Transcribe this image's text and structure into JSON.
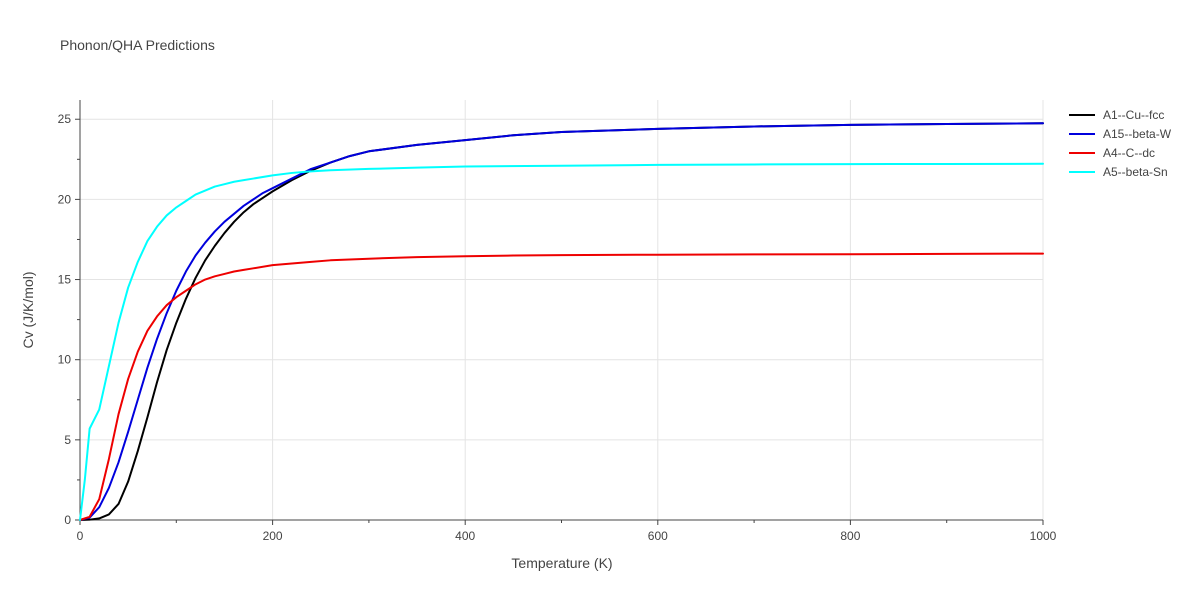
{
  "chart_data": {
    "type": "line",
    "title": "Phonon/QHA Predictions",
    "xlabel": "Temperature (K)",
    "ylabel": "Cv (J/K/mol)",
    "xlim": [
      0,
      1000
    ],
    "ylim": [
      0,
      26.2
    ],
    "xticks": [
      0,
      200,
      400,
      600,
      800,
      1000
    ],
    "yticks": [
      0,
      5,
      10,
      15,
      20,
      25
    ],
    "grid": true,
    "legend_position": "top-right",
    "series": [
      {
        "name": "A1--Cu--fcc",
        "color": "#000000",
        "x": [
          0,
          10,
          20,
          30,
          40,
          50,
          60,
          70,
          80,
          90,
          100,
          110,
          120,
          130,
          140,
          150,
          160,
          170,
          180,
          190,
          200,
          220,
          240,
          260,
          280,
          300,
          350,
          400,
          450,
          500,
          600,
          700,
          800,
          900,
          1000
        ],
        "y": [
          0,
          0.02,
          0.1,
          0.35,
          1.0,
          2.4,
          4.3,
          6.4,
          8.6,
          10.6,
          12.3,
          13.8,
          15.1,
          16.2,
          17.1,
          17.9,
          18.6,
          19.2,
          19.7,
          20.1,
          20.5,
          21.2,
          21.8,
          22.3,
          22.7,
          23.0,
          23.4,
          23.7,
          24.0,
          24.2,
          24.4,
          24.55,
          24.65,
          24.7,
          24.75
        ]
      },
      {
        "name": "A15--beta-W",
        "color": "#0000dd",
        "x": [
          0,
          10,
          20,
          30,
          40,
          50,
          60,
          70,
          80,
          90,
          100,
          110,
          120,
          130,
          140,
          150,
          160,
          170,
          180,
          190,
          200,
          220,
          240,
          260,
          280,
          300,
          350,
          400,
          450,
          500,
          600,
          700,
          800,
          900,
          1000
        ],
        "y": [
          0,
          0.15,
          0.8,
          2.0,
          3.6,
          5.5,
          7.5,
          9.5,
          11.3,
          12.9,
          14.3,
          15.5,
          16.5,
          17.3,
          18.0,
          18.6,
          19.1,
          19.6,
          20.0,
          20.4,
          20.7,
          21.3,
          21.9,
          22.3,
          22.7,
          23.0,
          23.4,
          23.7,
          24.0,
          24.2,
          24.4,
          24.55,
          24.65,
          24.7,
          24.75
        ]
      },
      {
        "name": "A4--C--dc",
        "color": "#ee0000",
        "x": [
          0,
          10,
          20,
          30,
          40,
          50,
          60,
          70,
          80,
          90,
          100,
          110,
          120,
          130,
          140,
          150,
          160,
          170,
          180,
          200,
          220,
          240,
          260,
          300,
          350,
          400,
          450,
          500,
          600,
          700,
          800,
          900,
          1000
        ],
        "y": [
          0,
          0.2,
          1.3,
          3.8,
          6.6,
          8.8,
          10.5,
          11.8,
          12.7,
          13.4,
          13.9,
          14.3,
          14.7,
          15.0,
          15.2,
          15.35,
          15.5,
          15.6,
          15.7,
          15.9,
          16.0,
          16.1,
          16.2,
          16.3,
          16.4,
          16.45,
          16.5,
          16.52,
          16.55,
          16.57,
          16.58,
          16.6,
          16.62
        ]
      },
      {
        "name": "A5--beta-Sn",
        "color": "#00ffff",
        "x": [
          0,
          5,
          10,
          20,
          30,
          40,
          50,
          60,
          70,
          80,
          90,
          100,
          110,
          120,
          130,
          140,
          150,
          160,
          170,
          180,
          200,
          220,
          240,
          260,
          300,
          350,
          400,
          500,
          600,
          700,
          800,
          900,
          1000
        ],
        "y": [
          0,
          2.5,
          5.7,
          6.9,
          9.6,
          12.3,
          14.5,
          16.1,
          17.4,
          18.3,
          19.0,
          19.5,
          19.9,
          20.3,
          20.55,
          20.8,
          20.95,
          21.1,
          21.2,
          21.3,
          21.5,
          21.65,
          21.75,
          21.82,
          21.9,
          21.98,
          22.05,
          22.1,
          22.15,
          22.18,
          22.2,
          22.21,
          22.22
        ]
      }
    ]
  }
}
